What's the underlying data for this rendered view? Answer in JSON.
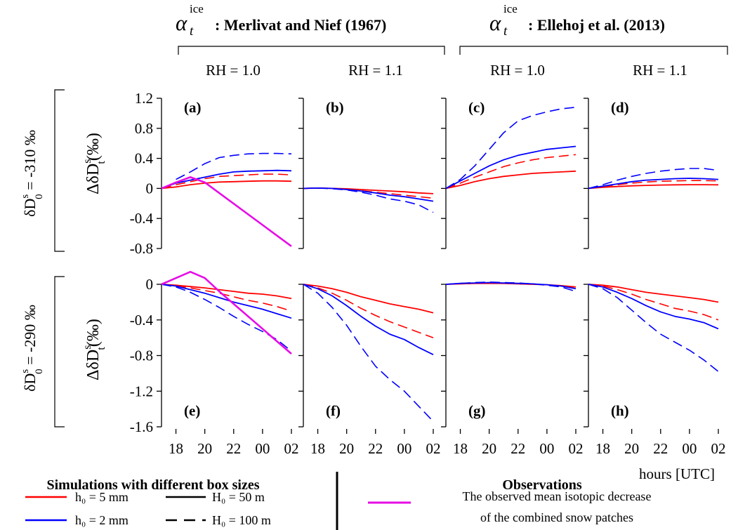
{
  "chart_data": {
    "type": "line",
    "x_unit_label": "hours [UTC]",
    "x_tick_labels": [
      "18",
      "20",
      "22",
      "00",
      "02"
    ],
    "x": [
      17,
      18,
      19,
      20,
      21,
      22,
      23,
      24,
      25,
      26
    ],
    "group_headers": [
      {
        "alpha_symbol": "α",
        "alpha_sub": "t",
        "alpha_sup": "ice",
        "title": ": Merlivat and Nief (1967)"
      },
      {
        "alpha_symbol": "α",
        "alpha_sub": "t",
        "alpha_sup": "ice",
        "title": ": Ellehoj et al. (2013)"
      }
    ],
    "column_headers": [
      "RH = 1.0",
      "RH = 1.1",
      "RH = 1.0",
      "RH = 1.1"
    ],
    "row_labels": [
      {
        "prefix": "δD",
        "sup": "s",
        "sub": "0",
        "value": " = -310 ‰"
      },
      {
        "prefix": "δD",
        "sup": "s",
        "sub": "0",
        "value": " = -290 ‰"
      }
    ],
    "ylabel": {
      "prefix": "ΔδD",
      "sup": "s",
      "sub": "t",
      "unit": "(‰)"
    },
    "rows": [
      {
        "ylim": [
          -0.8,
          1.2
        ],
        "yticks": [
          -0.8,
          -0.4,
          0,
          0.4,
          0.8,
          1.2
        ],
        "ytick_labels": [
          "-0.8",
          "-0.4",
          "0",
          "0.4",
          "0.8",
          "1.2"
        ]
      },
      {
        "ylim": [
          -1.6,
          0
        ],
        "yticks": [
          -1.6,
          -1.2,
          -0.8,
          -0.4,
          0
        ],
        "ytick_labels": [
          "-1.6",
          "-1.2",
          "-0.8",
          "-0.4",
          "0"
        ]
      }
    ],
    "panels": [
      {
        "label": "(a)",
        "row": 0,
        "col": 0,
        "series": [
          {
            "key": "r5_50",
            "values": [
              0,
              0.02,
              0.05,
              0.07,
              0.085,
              0.09,
              0.095,
              0.1,
              0.1,
              0.095
            ]
          },
          {
            "key": "r5_100",
            "values": [
              0,
              0.05,
              0.09,
              0.13,
              0.16,
              0.17,
              0.18,
              0.19,
              0.19,
              0.18
            ]
          },
          {
            "key": "b2_50",
            "values": [
              0,
              0.07,
              0.11,
              0.15,
              0.19,
              0.22,
              0.23,
              0.235,
              0.24,
              0.235
            ]
          },
          {
            "key": "b2_100",
            "values": [
              null,
              0.12,
              0.22,
              0.33,
              0.41,
              0.44,
              0.46,
              0.465,
              0.465,
              0.46
            ]
          },
          {
            "key": "obs",
            "values": [
              0,
              0.08,
              0.15,
              0.08,
              null,
              null,
              null,
              null,
              null,
              -0.77
            ]
          }
        ]
      },
      {
        "label": "(b)",
        "row": 0,
        "col": 1,
        "series": [
          {
            "key": "r5_50",
            "values": [
              0,
              0.005,
              0,
              -0.005,
              -0.015,
              -0.025,
              -0.035,
              -0.045,
              -0.06,
              -0.07
            ]
          },
          {
            "key": "r5_100",
            "values": [
              0,
              0.005,
              0,
              -0.01,
              -0.03,
              -0.05,
              -0.07,
              -0.09,
              -0.11,
              -0.13
            ]
          },
          {
            "key": "b2_50",
            "values": [
              0,
              0.005,
              0,
              -0.015,
              -0.035,
              -0.06,
              -0.09,
              -0.11,
              -0.14,
              -0.17
            ]
          },
          {
            "key": "b2_100",
            "values": [
              0,
              0.005,
              -0.005,
              -0.02,
              -0.05,
              -0.09,
              -0.14,
              -0.17,
              -0.22,
              -0.32
            ]
          }
        ]
      },
      {
        "label": "(c)",
        "row": 0,
        "col": 2,
        "series": [
          {
            "key": "r5_50",
            "values": [
              0,
              0.04,
              0.09,
              0.13,
              0.16,
              0.18,
              0.2,
              0.21,
              0.22,
              0.23
            ]
          },
          {
            "key": "r5_100",
            "values": [
              0,
              0.07,
              0.15,
              0.22,
              0.29,
              0.34,
              0.38,
              0.41,
              0.43,
              0.45
            ]
          },
          {
            "key": "b2_50",
            "values": [
              0,
              0.1,
              0.2,
              0.3,
              0.38,
              0.44,
              0.48,
              0.52,
              0.54,
              0.56
            ]
          },
          {
            "key": "b2_100",
            "values": [
              0,
              0.12,
              0.3,
              0.52,
              0.74,
              0.9,
              0.97,
              1.02,
              1.06,
              1.08
            ]
          }
        ]
      },
      {
        "label": "(d)",
        "row": 0,
        "col": 3,
        "series": [
          {
            "key": "r5_50",
            "values": [
              0,
              0.015,
              0.025,
              0.035,
              0.04,
              0.045,
              0.048,
              0.05,
              0.05,
              0.048
            ]
          },
          {
            "key": "r5_100",
            "values": [
              0,
              0.025,
              0.05,
              0.07,
              0.085,
              0.095,
              0.1,
              0.105,
              0.105,
              0.1
            ]
          },
          {
            "key": "b2_50",
            "values": [
              0,
              0.03,
              0.06,
              0.09,
              0.11,
              0.12,
              0.13,
              0.135,
              0.13,
              0.12
            ]
          },
          {
            "key": "b2_100",
            "values": [
              0,
              0.05,
              0.11,
              0.16,
              0.2,
              0.23,
              0.25,
              0.265,
              0.265,
              0.24
            ]
          }
        ]
      },
      {
        "label": "(e)",
        "row": 1,
        "col": 0,
        "series": [
          {
            "key": "r5_50",
            "values": [
              0,
              -0.01,
              -0.025,
              -0.04,
              -0.06,
              -0.08,
              -0.1,
              -0.11,
              -0.13,
              -0.16
            ]
          },
          {
            "key": "r5_100",
            "values": [
              0,
              -0.015,
              -0.04,
              -0.07,
              -0.1,
              -0.14,
              -0.18,
              -0.21,
              -0.25,
              -0.3
            ]
          },
          {
            "key": "b2_50",
            "values": [
              0,
              -0.02,
              -0.06,
              -0.1,
              -0.15,
              -0.2,
              -0.24,
              -0.28,
              -0.33,
              -0.38
            ]
          },
          {
            "key": "b2_100",
            "values": [
              0,
              -0.03,
              -0.09,
              -0.17,
              -0.26,
              -0.36,
              -0.45,
              -0.53,
              -0.62,
              -0.75
            ]
          },
          {
            "key": "obs",
            "values": [
              0,
              0.07,
              0.14,
              0.07,
              -0.08,
              null,
              null,
              null,
              null,
              -0.78
            ]
          }
        ]
      },
      {
        "label": "(f)",
        "row": 1,
        "col": 1,
        "series": [
          {
            "key": "r5_50",
            "values": [
              0,
              -0.02,
              -0.05,
              -0.09,
              -0.14,
              -0.18,
              -0.22,
              -0.25,
              -0.28,
              -0.32
            ]
          },
          {
            "key": "r5_100",
            "values": [
              0,
              -0.04,
              -0.1,
              -0.18,
              -0.27,
              -0.35,
              -0.42,
              -0.48,
              -0.54,
              -0.6
            ]
          },
          {
            "key": "b2_50",
            "values": [
              0,
              -0.05,
              -0.13,
              -0.24,
              -0.36,
              -0.47,
              -0.56,
              -0.62,
              -0.71,
              -0.79
            ]
          },
          {
            "key": "b2_100",
            "values": [
              0,
              -0.1,
              -0.26,
              -0.46,
              -0.7,
              -0.92,
              -1.07,
              -1.2,
              -1.37,
              -1.54
            ]
          }
        ]
      },
      {
        "label": "(g)",
        "row": 1,
        "col": 2,
        "series": [
          {
            "key": "r5_50",
            "values": [
              0,
              0.005,
              0.01,
              0.01,
              0.01,
              0.005,
              0,
              -0.005,
              -0.015,
              -0.03
            ]
          },
          {
            "key": "r5_100",
            "values": [
              0,
              0.005,
              0.01,
              0.01,
              0.01,
              0.005,
              0,
              -0.005,
              -0.02,
              -0.04
            ]
          },
          {
            "key": "b2_50",
            "values": [
              0,
              0.01,
              0.015,
              0.02,
              0.015,
              0.01,
              0.005,
              -0.005,
              -0.02,
              -0.05
            ]
          },
          {
            "key": "b2_100",
            "values": [
              0,
              0.01,
              0.02,
              0.025,
              0.02,
              0.015,
              0.005,
              -0.01,
              -0.03,
              -0.08
            ]
          }
        ]
      },
      {
        "label": "(h)",
        "row": 1,
        "col": 3,
        "series": [
          {
            "key": "r5_50",
            "values": [
              0,
              -0.01,
              -0.03,
              -0.06,
              -0.09,
              -0.11,
              -0.13,
              -0.15,
              -0.17,
              -0.2
            ]
          },
          {
            "key": "r5_100",
            "values": [
              0,
              -0.02,
              -0.06,
              -0.11,
              -0.17,
              -0.22,
              -0.27,
              -0.3,
              -0.34,
              -0.4
            ]
          },
          {
            "key": "b2_50",
            "values": [
              0,
              -0.03,
              -0.09,
              -0.16,
              -0.24,
              -0.31,
              -0.36,
              -0.39,
              -0.43,
              -0.5
            ]
          },
          {
            "key": "b2_100",
            "values": [
              0,
              -0.05,
              -0.15,
              -0.29,
              -0.43,
              -0.56,
              -0.65,
              -0.74,
              -0.85,
              -0.98
            ]
          }
        ]
      }
    ],
    "series_styles": {
      "r5_50": {
        "color": "#ff0000",
        "dash": false,
        "width": 1.8
      },
      "r5_100": {
        "color": "#ff0000",
        "dash": true,
        "width": 1.6
      },
      "b2_50": {
        "color": "#0000ff",
        "dash": false,
        "width": 1.8
      },
      "b2_100": {
        "color": "#0000ff",
        "dash": true,
        "width": 1.6
      },
      "obs": {
        "color": "#e60ce6",
        "dash": false,
        "width": 2.6
      }
    },
    "legend": {
      "sim_title": "Simulations with different box sizes",
      "sim_entries": [
        {
          "text": "h₀ = 5 mm",
          "color": "#ff0000",
          "dash": false
        },
        {
          "text": "H₀ = 50 m",
          "color": "#000000",
          "dash": false
        },
        {
          "text": "h₀ = 2 mm",
          "color": "#0000ff",
          "dash": false
        },
        {
          "text": "H₀ = 100 m",
          "color": "#000000",
          "dash": true
        }
      ],
      "obs_title": "Observations",
      "obs_line1": "The observed mean isotopic decrease",
      "obs_line2": "of the combined snow patches",
      "obs_color": "#e60ce6"
    }
  }
}
